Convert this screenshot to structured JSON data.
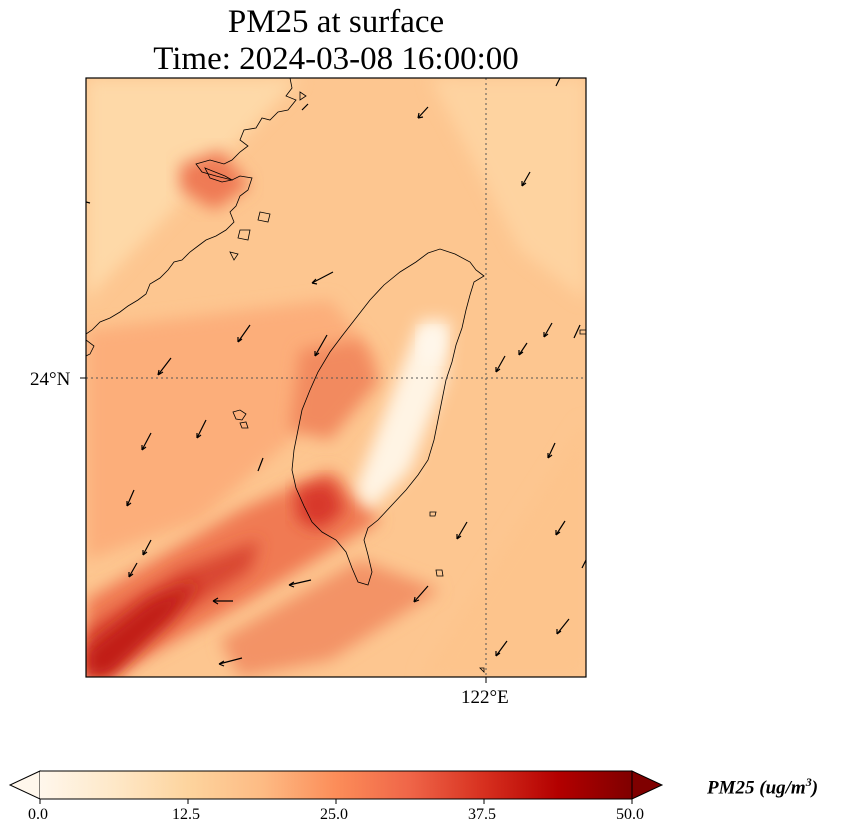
{
  "title": {
    "line1": "PM25 at surface",
    "line2": "Time: 2024-03-08 16:00:00"
  },
  "map": {
    "variable": "PM25",
    "level": "surface",
    "time": "2024-03-08 16:00:00",
    "lat_gridline": "24°N",
    "lon_gridline": "122°E",
    "colormap": "OrRd",
    "wind_vectors": true,
    "coastlines": true
  },
  "colorbar": {
    "ticks": [
      "0.0",
      "12.5",
      "25.0",
      "37.5",
      "50.0"
    ],
    "min": 0,
    "max": 50,
    "extend": "both",
    "label_text": "PM25 (ug/m",
    "label_sup": "3",
    "label_close": ")",
    "colors": [
      "#fff7ec",
      "#fee8c8",
      "#fdd49e",
      "#fdbb84",
      "#fc8d59",
      "#ef6548",
      "#d7301f",
      "#b30000",
      "#7f0000"
    ]
  }
}
